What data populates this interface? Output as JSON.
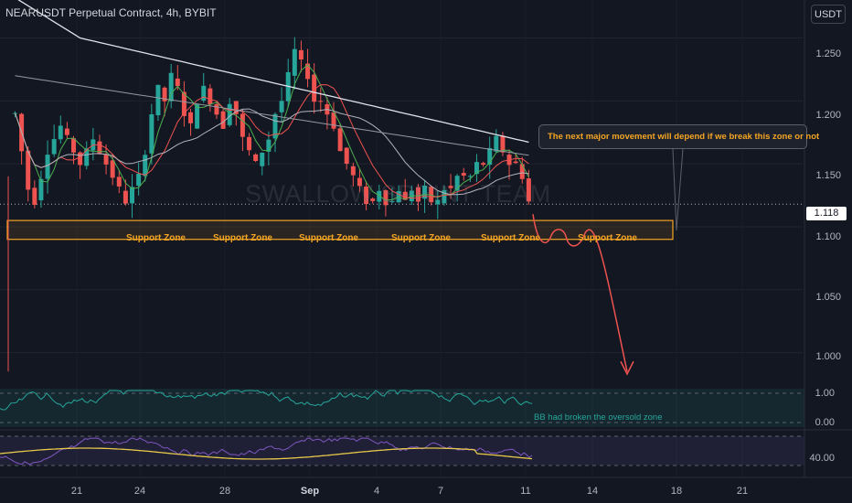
{
  "header": {
    "title": "NEARUSDT Perpetual Contract, 4h, BYBIT",
    "unit_button": "USDT"
  },
  "watermark": "SWALLOW SPRINT TEAM",
  "current_price": "1.118",
  "price_axis": [
    "1.250",
    "1.200",
    "1.150",
    "1.100",
    "1.050",
    "1.000"
  ],
  "time_axis": [
    "21",
    "24",
    "28",
    "Sep",
    "4",
    "7",
    "11",
    "14",
    "18",
    "21"
  ],
  "support_zone_label": "Support Zone",
  "callout_text": "The next major movement will depend if we break this zone or not",
  "indicator1": {
    "note": "BB had broken the oversold zone",
    "levels": [
      "1.00",
      "0.00"
    ]
  },
  "indicator2": {
    "levels": [
      "40.00"
    ]
  },
  "colors": {
    "background": "#131722",
    "up_candle": "#26a69a",
    "down_candle": "#ef5350",
    "support_zone": "#f5a623",
    "arrow": "#ef5350"
  },
  "chart_data": {
    "type": "candlestick",
    "symbol": "NEARUSDT",
    "interval": "4h",
    "ylim": [
      0.975,
      1.27
    ],
    "support_zone": [
      1.09,
      1.105
    ],
    "projected_target": 0.98,
    "price_path": [
      1.19,
      1.16,
      1.13,
      1.12,
      1.14,
      1.16,
      1.17,
      1.18,
      1.17,
      1.16,
      1.15,
      1.16,
      1.17,
      1.16,
      1.15,
      1.14,
      1.13,
      1.12,
      1.13,
      1.14,
      1.16,
      1.19,
      1.21,
      1.2,
      1.22,
      1.21,
      1.19,
      1.18,
      1.2,
      1.21,
      1.2,
      1.19,
      1.18,
      1.2,
      1.19,
      1.17,
      1.16,
      1.15,
      1.16,
      1.17,
      1.19,
      1.2,
      1.22,
      1.24,
      1.23,
      1.22,
      1.2,
      1.2,
      1.19,
      1.18,
      1.16,
      1.15,
      1.14,
      1.13,
      1.12,
      1.12,
      1.13,
      1.12,
      1.12,
      1.13,
      1.12,
      1.13,
      1.12,
      1.13,
      1.12,
      1.12,
      1.13,
      1.13,
      1.14,
      1.14,
      1.14,
      1.15,
      1.15,
      1.16,
      1.17,
      1.16,
      1.15,
      1.15,
      1.14,
      1.12
    ]
  }
}
